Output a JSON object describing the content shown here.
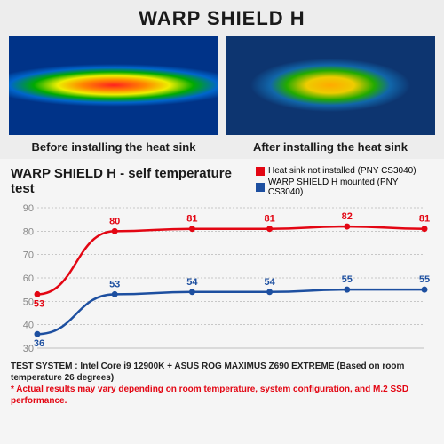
{
  "header": {
    "title": "WARP SHIELD H"
  },
  "thermals": {
    "before_label": "Before installing the heat sink",
    "after_label": "After installing the heat sink"
  },
  "chart": {
    "title": "WARP SHIELD H - self temperature test",
    "type": "line",
    "ylim": [
      30,
      90
    ],
    "ytick_step": 10,
    "yticks": [
      30,
      40,
      50,
      60,
      70,
      80,
      90
    ],
    "background_color": "#f5f5f5",
    "grid_color": "#999999",
    "legend": [
      {
        "color": "#e30613",
        "label": "Heat sink not installed (PNY CS3040)"
      },
      {
        "color": "#1d4fa0",
        "label": "WARP SHIELD H mounted (PNY CS3040)"
      }
    ],
    "x_positions": [
      0,
      1,
      2,
      3,
      4,
      5
    ],
    "series_red": {
      "color": "#e30613",
      "values": [
        53,
        80,
        81,
        81,
        82,
        81
      ],
      "line_width": 2.5
    },
    "series_blue": {
      "color": "#1d4fa0",
      "values": [
        36,
        53,
        54,
        54,
        55,
        55
      ],
      "line_width": 2.5
    }
  },
  "footer": {
    "system": "TEST SYSTEM : Intel Core i9 12900K + ASUS ROG MAXIMUS Z690 EXTREME (Based on room temperature 26 degrees)",
    "note": "* Actual results may vary depending on room temperature, system configuration, and M.2 SSD performance."
  }
}
